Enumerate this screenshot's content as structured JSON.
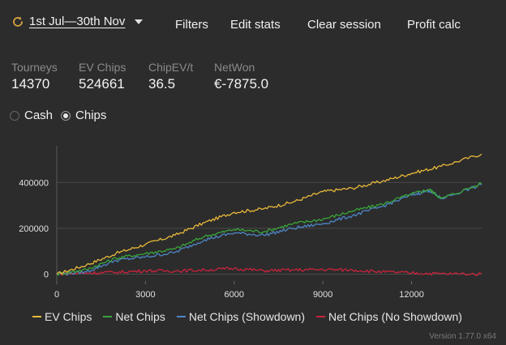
{
  "toolbar": {
    "date_range": "1st Jul—30th Nov",
    "filters": "Filters",
    "edit_stats": "Edit stats",
    "clear_session": "Clear session",
    "profit_calc": "Profit calc"
  },
  "stats": [
    {
      "label": "Tourneys",
      "value": "14370"
    },
    {
      "label": "EV Chips",
      "value": "524661"
    },
    {
      "label": "ChipEV/t",
      "value": "36.5"
    },
    {
      "label": "NetWon",
      "value": "€-7875.0"
    }
  ],
  "mode": {
    "options": [
      "Cash",
      "Chips"
    ],
    "selected": "Chips"
  },
  "colors": {
    "ev_chips": "#e8b83a",
    "net_chips": "#3aa43a",
    "net_showdown": "#4c86c6",
    "net_no_showdown": "#c8243c"
  },
  "chart_data": {
    "type": "line",
    "xlim": [
      0,
      14370
    ],
    "ylim": [
      -30000,
      560000
    ],
    "x_ticks": [
      "0",
      "3000",
      "6000",
      "9000",
      "12000"
    ],
    "x_tick_values": [
      0,
      3000,
      6000,
      9000,
      12000
    ],
    "y_ticks": [
      "0",
      "200000",
      "400000"
    ],
    "y_tick_values": [
      0,
      200000,
      400000
    ],
    "grid": true,
    "legend": "bottom",
    "series": [
      {
        "name": "EV Chips",
        "color": "#e8b83a",
        "x": [
          0,
          1000,
          2000,
          3000,
          4000,
          5000,
          6000,
          7000,
          8000,
          9000,
          10000,
          11000,
          12000,
          13000,
          14370
        ],
        "values": [
          0,
          40000,
          90000,
          130000,
          170000,
          225000,
          270000,
          285000,
          315000,
          360000,
          375000,
          405000,
          440000,
          470000,
          524000
        ]
      },
      {
        "name": "Net Chips",
        "color": "#3aa43a",
        "x": [
          0,
          1000,
          2000,
          3000,
          4000,
          5000,
          6000,
          7000,
          8000,
          9000,
          10000,
          11000,
          12000,
          12600,
          13000,
          14370
        ],
        "values": [
          0,
          20000,
          70000,
          90000,
          110000,
          165000,
          195000,
          185000,
          220000,
          240000,
          275000,
          305000,
          350000,
          370000,
          330000,
          395000
        ]
      },
      {
        "name": "Net Chips (Showdown)",
        "color": "#4c86c6",
        "x": [
          0,
          1000,
          2000,
          3000,
          4000,
          5000,
          6000,
          7000,
          8000,
          9000,
          10000,
          11000,
          12000,
          12600,
          13000,
          14370
        ],
        "values": [
          0,
          10000,
          60000,
          75000,
          95000,
          150000,
          180000,
          170000,
          200000,
          220000,
          255000,
          295000,
          345000,
          365000,
          330000,
          390000
        ]
      },
      {
        "name": "Net Chips (No Showdown)",
        "color": "#c8243c",
        "x": [
          0,
          1000,
          2000,
          3000,
          4000,
          5000,
          6000,
          7000,
          8000,
          9000,
          10000,
          11000,
          12000,
          13000,
          14370
        ],
        "values": [
          0,
          5000,
          8000,
          15000,
          14000,
          18000,
          25000,
          15000,
          18000,
          20000,
          18000,
          10000,
          5000,
          2000,
          0
        ]
      }
    ]
  },
  "footer": {
    "version": "Version 1.77.0 x64"
  }
}
